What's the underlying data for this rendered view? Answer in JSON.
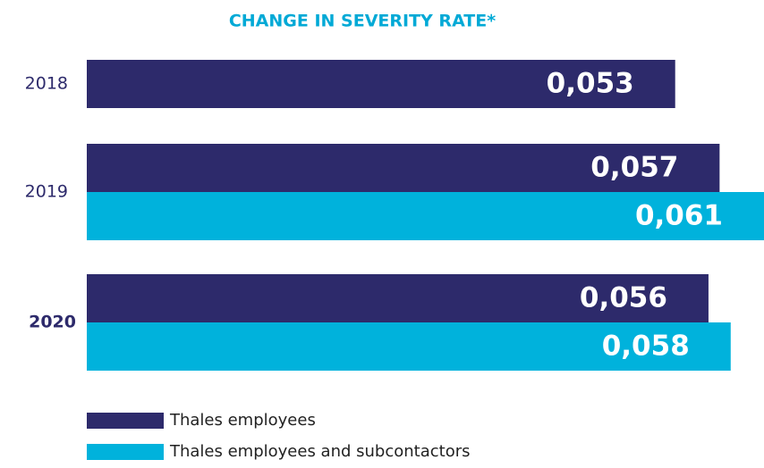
{
  "chart_data": {
    "type": "bar",
    "orientation": "horizontal",
    "title": "CHANGE IN SEVERITY RATE*",
    "categories": [
      "2018",
      "2019",
      "2020"
    ],
    "series": [
      {
        "name": "Thales employees",
        "color": "#2d2a6b",
        "values": [
          0.053,
          0.057,
          0.056
        ],
        "value_labels": [
          "0,053",
          "0,057",
          "0,056"
        ]
      },
      {
        "name": "Thales employees and subcontactors",
        "color": "#00b2dc",
        "values": [
          null,
          0.061,
          0.058
        ],
        "value_labels": [
          null,
          "0,061",
          "0,058"
        ]
      }
    ],
    "legend": "bottom-left"
  }
}
